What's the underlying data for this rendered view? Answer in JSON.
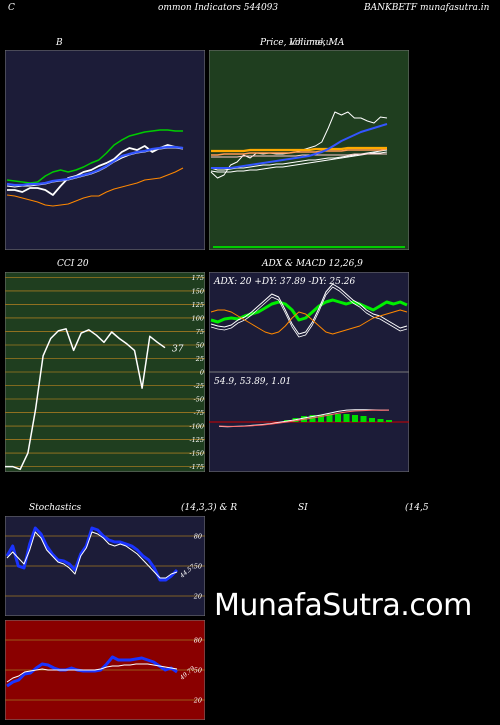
{
  "header": {
    "left": "C",
    "center": "ommon  Indicators 544093",
    "right": "BANKBETF munafasutra.in"
  },
  "watermark": "MunafaSutra.com",
  "colors": {
    "bb_bg": "#1c1c38",
    "price_bg": "#1f3e1f",
    "cci_bg": "#1f3e1f",
    "adx_bg": "#1c1c38",
    "macd_bg": "#1c1c38",
    "stoch_bg": "#1c1c38",
    "rsi_bg": "#8a0000",
    "grid": "#a07820"
  },
  "chart_data": [
    {
      "id": "bollinger",
      "type": "line",
      "title": "B",
      "title_right": "",
      "series": [
        {
          "color": "#00cc00",
          "values": [
            180,
            181,
            182,
            183,
            182,
            176,
            172,
            170,
            172,
            170,
            167,
            163,
            160,
            153,
            145,
            140,
            136,
            134,
            132,
            131,
            130,
            130,
            131,
            131
          ]
        },
        {
          "color": "#ffffff",
          "values": [
            190,
            190,
            192,
            188,
            188,
            190,
            195,
            186,
            178,
            176,
            172,
            170,
            166,
            163,
            159,
            152,
            148,
            150,
            146,
            152,
            148,
            145,
            147,
            148
          ]
        },
        {
          "color": "#ffffff",
          "values": [
            186,
            187,
            186,
            186,
            185,
            184,
            182,
            181,
            180,
            178,
            176,
            174,
            171,
            167,
            162,
            158,
            155,
            153,
            152,
            150,
            149,
            148,
            148,
            149
          ]
        },
        {
          "color": "#3355ff",
          "values": [
            184,
            185,
            185,
            184,
            184,
            183,
            181,
            180,
            179,
            177,
            175,
            173,
            170,
            166,
            161,
            156,
            154,
            152,
            151,
            149,
            148,
            147,
            147,
            148
          ]
        },
        {
          "color": "#ff8800",
          "values": [
            195,
            196,
            198,
            200,
            202,
            205,
            206,
            205,
            204,
            201,
            198,
            196,
            196,
            192,
            189,
            187,
            185,
            183,
            180,
            179,
            178,
            175,
            172,
            168
          ]
        }
      ]
    },
    {
      "id": "price_ma",
      "type": "line",
      "title": "Price,  Volume, MA",
      "title_overlay": "Ichimoku",
      "series": [
        {
          "color": "#ffffff",
          "values": [
            172,
            178,
            175,
            165,
            162,
            155,
            158,
            153,
            154,
            153,
            154,
            154,
            153,
            152,
            150,
            148,
            146,
            142,
            128,
            112,
            115,
            112,
            118,
            118,
            121,
            123,
            117,
            118
          ]
        },
        {
          "color": "#ffffff",
          "values": [
            168,
            170,
            170,
            169,
            168,
            168,
            167,
            166,
            165,
            165,
            164,
            164,
            163,
            162,
            161,
            160,
            160,
            159,
            158,
            158,
            157,
            156,
            155,
            154,
            153,
            152,
            151,
            150
          ]
        },
        {
          "color": "#ffffff",
          "values": [
            171,
            172,
            172,
            172,
            171,
            171,
            170,
            170,
            169,
            168,
            167,
            167,
            166,
            165,
            164,
            163,
            162,
            161,
            160,
            159,
            158,
            157,
            156,
            155,
            154,
            153,
            153,
            152
          ]
        },
        {
          "color": "#ff9955",
          "values": [
            155,
            155,
            154,
            154,
            154,
            154,
            153,
            153,
            153,
            153,
            153,
            153,
            153,
            152,
            152,
            152,
            152,
            151,
            151,
            151,
            151,
            150,
            150,
            150,
            150,
            150,
            150,
            149
          ]
        },
        {
          "color": "#ffaa00",
          "values": [
            151,
            151,
            151,
            151,
            151,
            151,
            150,
            150,
            150,
            150,
            150,
            150,
            150,
            150,
            150,
            150,
            149,
            149,
            149,
            149,
            149,
            148,
            148,
            148,
            148,
            148,
            148,
            148
          ]
        },
        {
          "color": "#ffcccc",
          "values": [
            157,
            157,
            157,
            157,
            157,
            156,
            156,
            156,
            156,
            156,
            156,
            156,
            156,
            156,
            155,
            155,
            155,
            155,
            155,
            155,
            155,
            155,
            154,
            154,
            154,
            154,
            154,
            154
          ]
        },
        {
          "color": "#3355ff",
          "values": [
            168,
            168,
            168,
            168,
            167,
            166,
            165,
            164,
            163,
            162,
            161,
            160,
            159,
            158,
            157,
            156,
            154,
            152,
            149,
            145,
            141,
            138,
            135,
            132,
            130,
            128,
            126,
            124
          ]
        }
      ]
    },
    {
      "id": "cci",
      "type": "line",
      "title": "CCI 20",
      "value_label": "37",
      "y_ticks": [
        "175",
        "150",
        "125",
        "100",
        "75",
        "50",
        "25",
        "0",
        "-25",
        "-50",
        "-75",
        "-100",
        "-125",
        "-150",
        "-175"
      ],
      "ylim": [
        -185,
        185
      ],
      "values": [
        -175,
        -175,
        -180,
        -150,
        -70,
        30,
        62,
        76,
        80,
        40,
        72,
        78,
        68,
        55,
        74,
        62,
        52,
        40,
        -30,
        66,
        55,
        45
      ]
    },
    {
      "id": "adx",
      "type": "line",
      "title": "ADX  & MACD 12,26,9",
      "label": "ADX: 20  +DY: 37.89 -DY: 25.26",
      "series": [
        {
          "color": "#00ee00",
          "values": [
            52,
            50,
            53,
            54,
            53,
            56,
            58,
            60,
            64,
            68,
            70,
            68,
            62,
            52,
            54,
            60,
            66,
            70,
            72,
            70,
            68,
            70,
            68,
            65,
            62,
            66,
            70,
            68,
            70,
            67
          ]
        },
        {
          "color": "#ffffff",
          "values": [
            48,
            46,
            45,
            47,
            52,
            55,
            60,
            66,
            72,
            78,
            75,
            62,
            48,
            38,
            40,
            50,
            64,
            80,
            88,
            84,
            78,
            72,
            68,
            62,
            58,
            56,
            52,
            48,
            44,
            46
          ]
        },
        {
          "color": "#ff8800",
          "values": [
            60,
            62,
            62,
            60,
            56,
            52,
            48,
            44,
            40,
            38,
            40,
            46,
            54,
            60,
            58,
            52,
            46,
            40,
            38,
            40,
            42,
            44,
            46,
            50,
            54,
            56,
            58,
            60,
            62,
            60
          ]
        }
      ]
    },
    {
      "id": "macd",
      "type": "line",
      "label": "54.9,  53.89,  1.01",
      "series": [
        {
          "color": "#ffffff",
          "values": [
            -20,
            -22,
            -20,
            -18,
            -15,
            -12,
            -8,
            -2,
            4,
            10,
            18,
            25,
            32,
            40,
            48,
            54,
            56,
            56,
            55,
            54,
            54
          ]
        },
        {
          "color": "#ff6666",
          "values": [
            -18,
            -20,
            -20,
            -19,
            -17,
            -14,
            -10,
            -5,
            0,
            6,
            12,
            18,
            25,
            32,
            40,
            46,
            50,
            52,
            53,
            53,
            54
          ]
        }
      ],
      "histogram": [
        0,
        0,
        0,
        0,
        0,
        0,
        0,
        0,
        2,
        4,
        6,
        7,
        7,
        8,
        8,
        8,
        7,
        6,
        4,
        3,
        2
      ]
    },
    {
      "id": "stochastics",
      "type": "line",
      "title": "Stochastics",
      "params": "(14,3,3) & R",
      "y_ticks": [
        "80",
        "50",
        "20"
      ],
      "value_label": "44.57",
      "series": [
        {
          "color": "#1a33ff",
          "values": [
            60,
            70,
            50,
            48,
            72,
            88,
            82,
            70,
            62,
            56,
            55,
            52,
            46,
            62,
            70,
            88,
            86,
            80,
            76,
            74,
            74,
            72,
            70,
            66,
            60,
            56,
            48,
            36,
            36,
            40,
            46
          ]
        },
        {
          "color": "#ffffff",
          "values": [
            58,
            64,
            58,
            52,
            66,
            84,
            78,
            66,
            60,
            54,
            52,
            48,
            42,
            60,
            68,
            84,
            82,
            78,
            72,
            70,
            72,
            70,
            66,
            62,
            56,
            50,
            44,
            38,
            38,
            42,
            44
          ]
        }
      ]
    },
    {
      "id": "rsi",
      "type": "line",
      "title": "SI",
      "params": "(14,5",
      "y_ticks": [
        "80",
        "50",
        "20"
      ],
      "value_label": "49.79",
      "series": [
        {
          "color": "#1a33ff",
          "values": [
            34,
            38,
            40,
            46,
            47,
            52,
            56,
            55,
            52,
            50,
            50,
            52,
            50,
            49,
            49,
            49,
            50,
            56,
            63,
            60,
            60,
            60,
            61,
            62,
            60,
            58,
            54,
            50,
            52,
            48
          ]
        },
        {
          "color": "#ffffff",
          "values": [
            38,
            42,
            44,
            48,
            49,
            50,
            51,
            50,
            50,
            50,
            50,
            50,
            50,
            50,
            50,
            50,
            51,
            53,
            54,
            54,
            55,
            55,
            56,
            56,
            56,
            55,
            54,
            53,
            52,
            51
          ]
        }
      ]
    }
  ]
}
